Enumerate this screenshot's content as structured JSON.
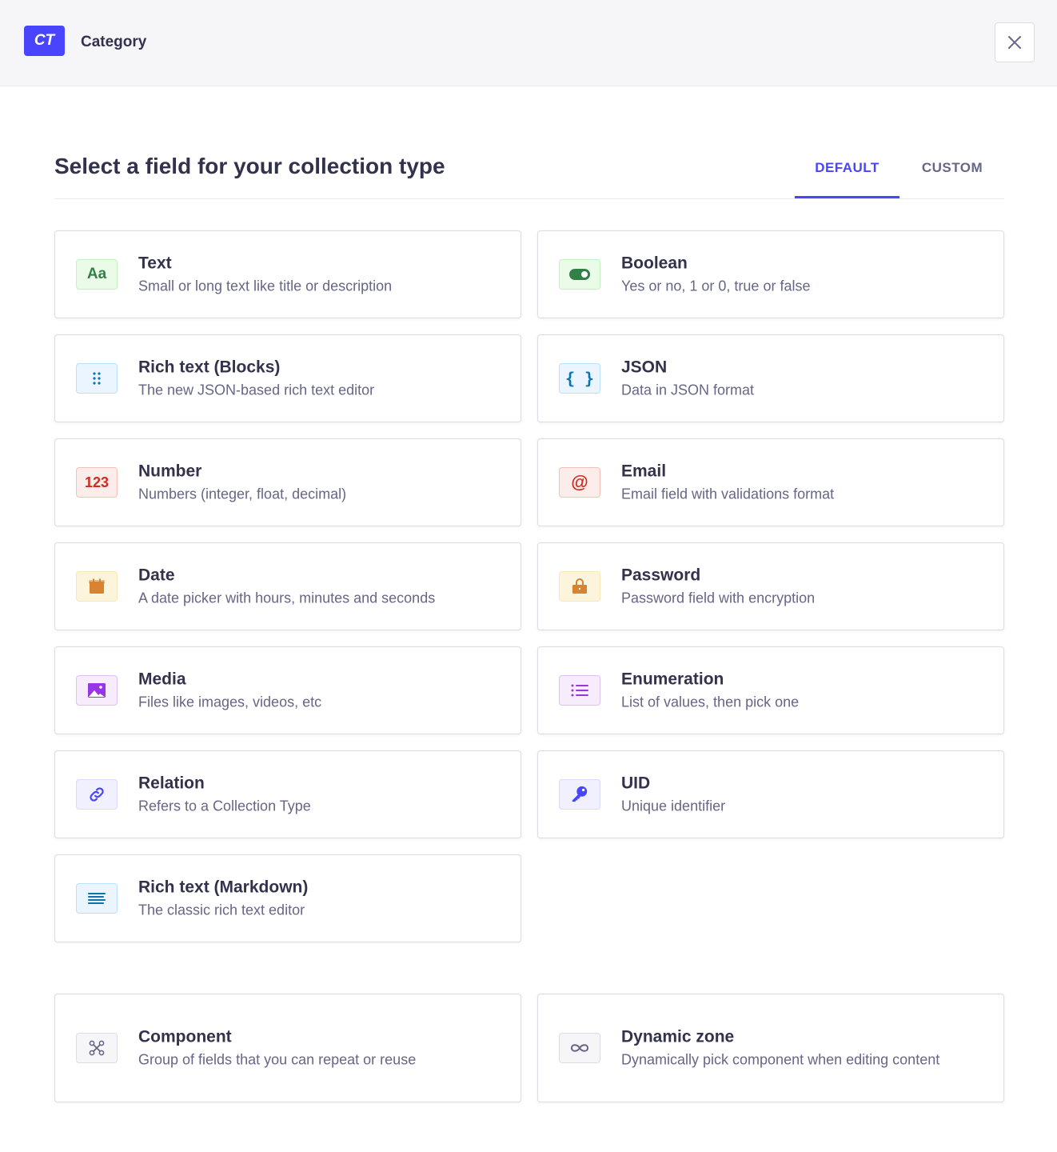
{
  "header": {
    "badge": "CT",
    "title": "Category"
  },
  "main": {
    "title": "Select a field for your collection type",
    "tabs": [
      {
        "label": "DEFAULT",
        "active": true
      },
      {
        "label": "CUSTOM",
        "active": false
      }
    ]
  },
  "fields": [
    {
      "title": "Text",
      "description": "Small or long text like title or description",
      "icon": "text-icon",
      "color": "green"
    },
    {
      "title": "Boolean",
      "description": "Yes or no, 1 or 0, true or false",
      "icon": "toggle-icon",
      "color": "green"
    },
    {
      "title": "Rich text (Blocks)",
      "description": "The new JSON-based rich text editor",
      "icon": "drag-dots-icon",
      "color": "blue"
    },
    {
      "title": "JSON",
      "description": "Data in JSON format",
      "icon": "braces-icon",
      "color": "blue"
    },
    {
      "title": "Number",
      "description": "Numbers (integer, float, decimal)",
      "icon": "number-icon",
      "color": "red"
    },
    {
      "title": "Email",
      "description": "Email field with validations format",
      "icon": "at-sign-icon",
      "color": "red"
    },
    {
      "title": "Date",
      "description": "A date picker with hours, minutes and seconds",
      "icon": "calendar-icon",
      "color": "orange"
    },
    {
      "title": "Password",
      "description": "Password field with encryption",
      "icon": "lock-icon",
      "color": "orange"
    },
    {
      "title": "Media",
      "description": "Files like images, videos, etc",
      "icon": "image-icon",
      "color": "purple"
    },
    {
      "title": "Enumeration",
      "description": "List of values, then pick one",
      "icon": "list-icon",
      "color": "purple"
    },
    {
      "title": "Relation",
      "description": "Refers to a Collection Type",
      "icon": "link-icon",
      "color": "indigo"
    },
    {
      "title": "UID",
      "description": "Unique identifier",
      "icon": "key-icon",
      "color": "indigo"
    },
    {
      "title": "Rich text (Markdown)",
      "description": "The classic rich text editor",
      "icon": "align-left-icon",
      "color": "blue"
    }
  ],
  "special_fields": [
    {
      "title": "Component",
      "description": "Group of fields that you can repeat or reuse",
      "icon": "component-icon",
      "color": "neutral"
    },
    {
      "title": "Dynamic zone",
      "description": "Dynamically pick component when editing content",
      "icon": "infinity-icon",
      "color": "neutral"
    }
  ],
  "colors": {
    "accent": "#4945ff",
    "green": [
      "#eafbe7",
      "#c6f0c2",
      "#328048"
    ],
    "blue": [
      "#eaf5ff",
      "#b8e1ff",
      "#0c75af"
    ],
    "red": [
      "#fcecea",
      "#f5c0b8",
      "#d02b20"
    ],
    "orange": [
      "#fdf4dc",
      "#fae7b9",
      "#d9822f"
    ],
    "purple": [
      "#f6ecfc",
      "#e0c1f4",
      "#9736e8"
    ],
    "indigo": [
      "#f0f0ff",
      "#d9d8ff",
      "#4945ff"
    ],
    "neutral": [
      "#f6f6f9",
      "#dcdce4",
      "#666687"
    ]
  }
}
